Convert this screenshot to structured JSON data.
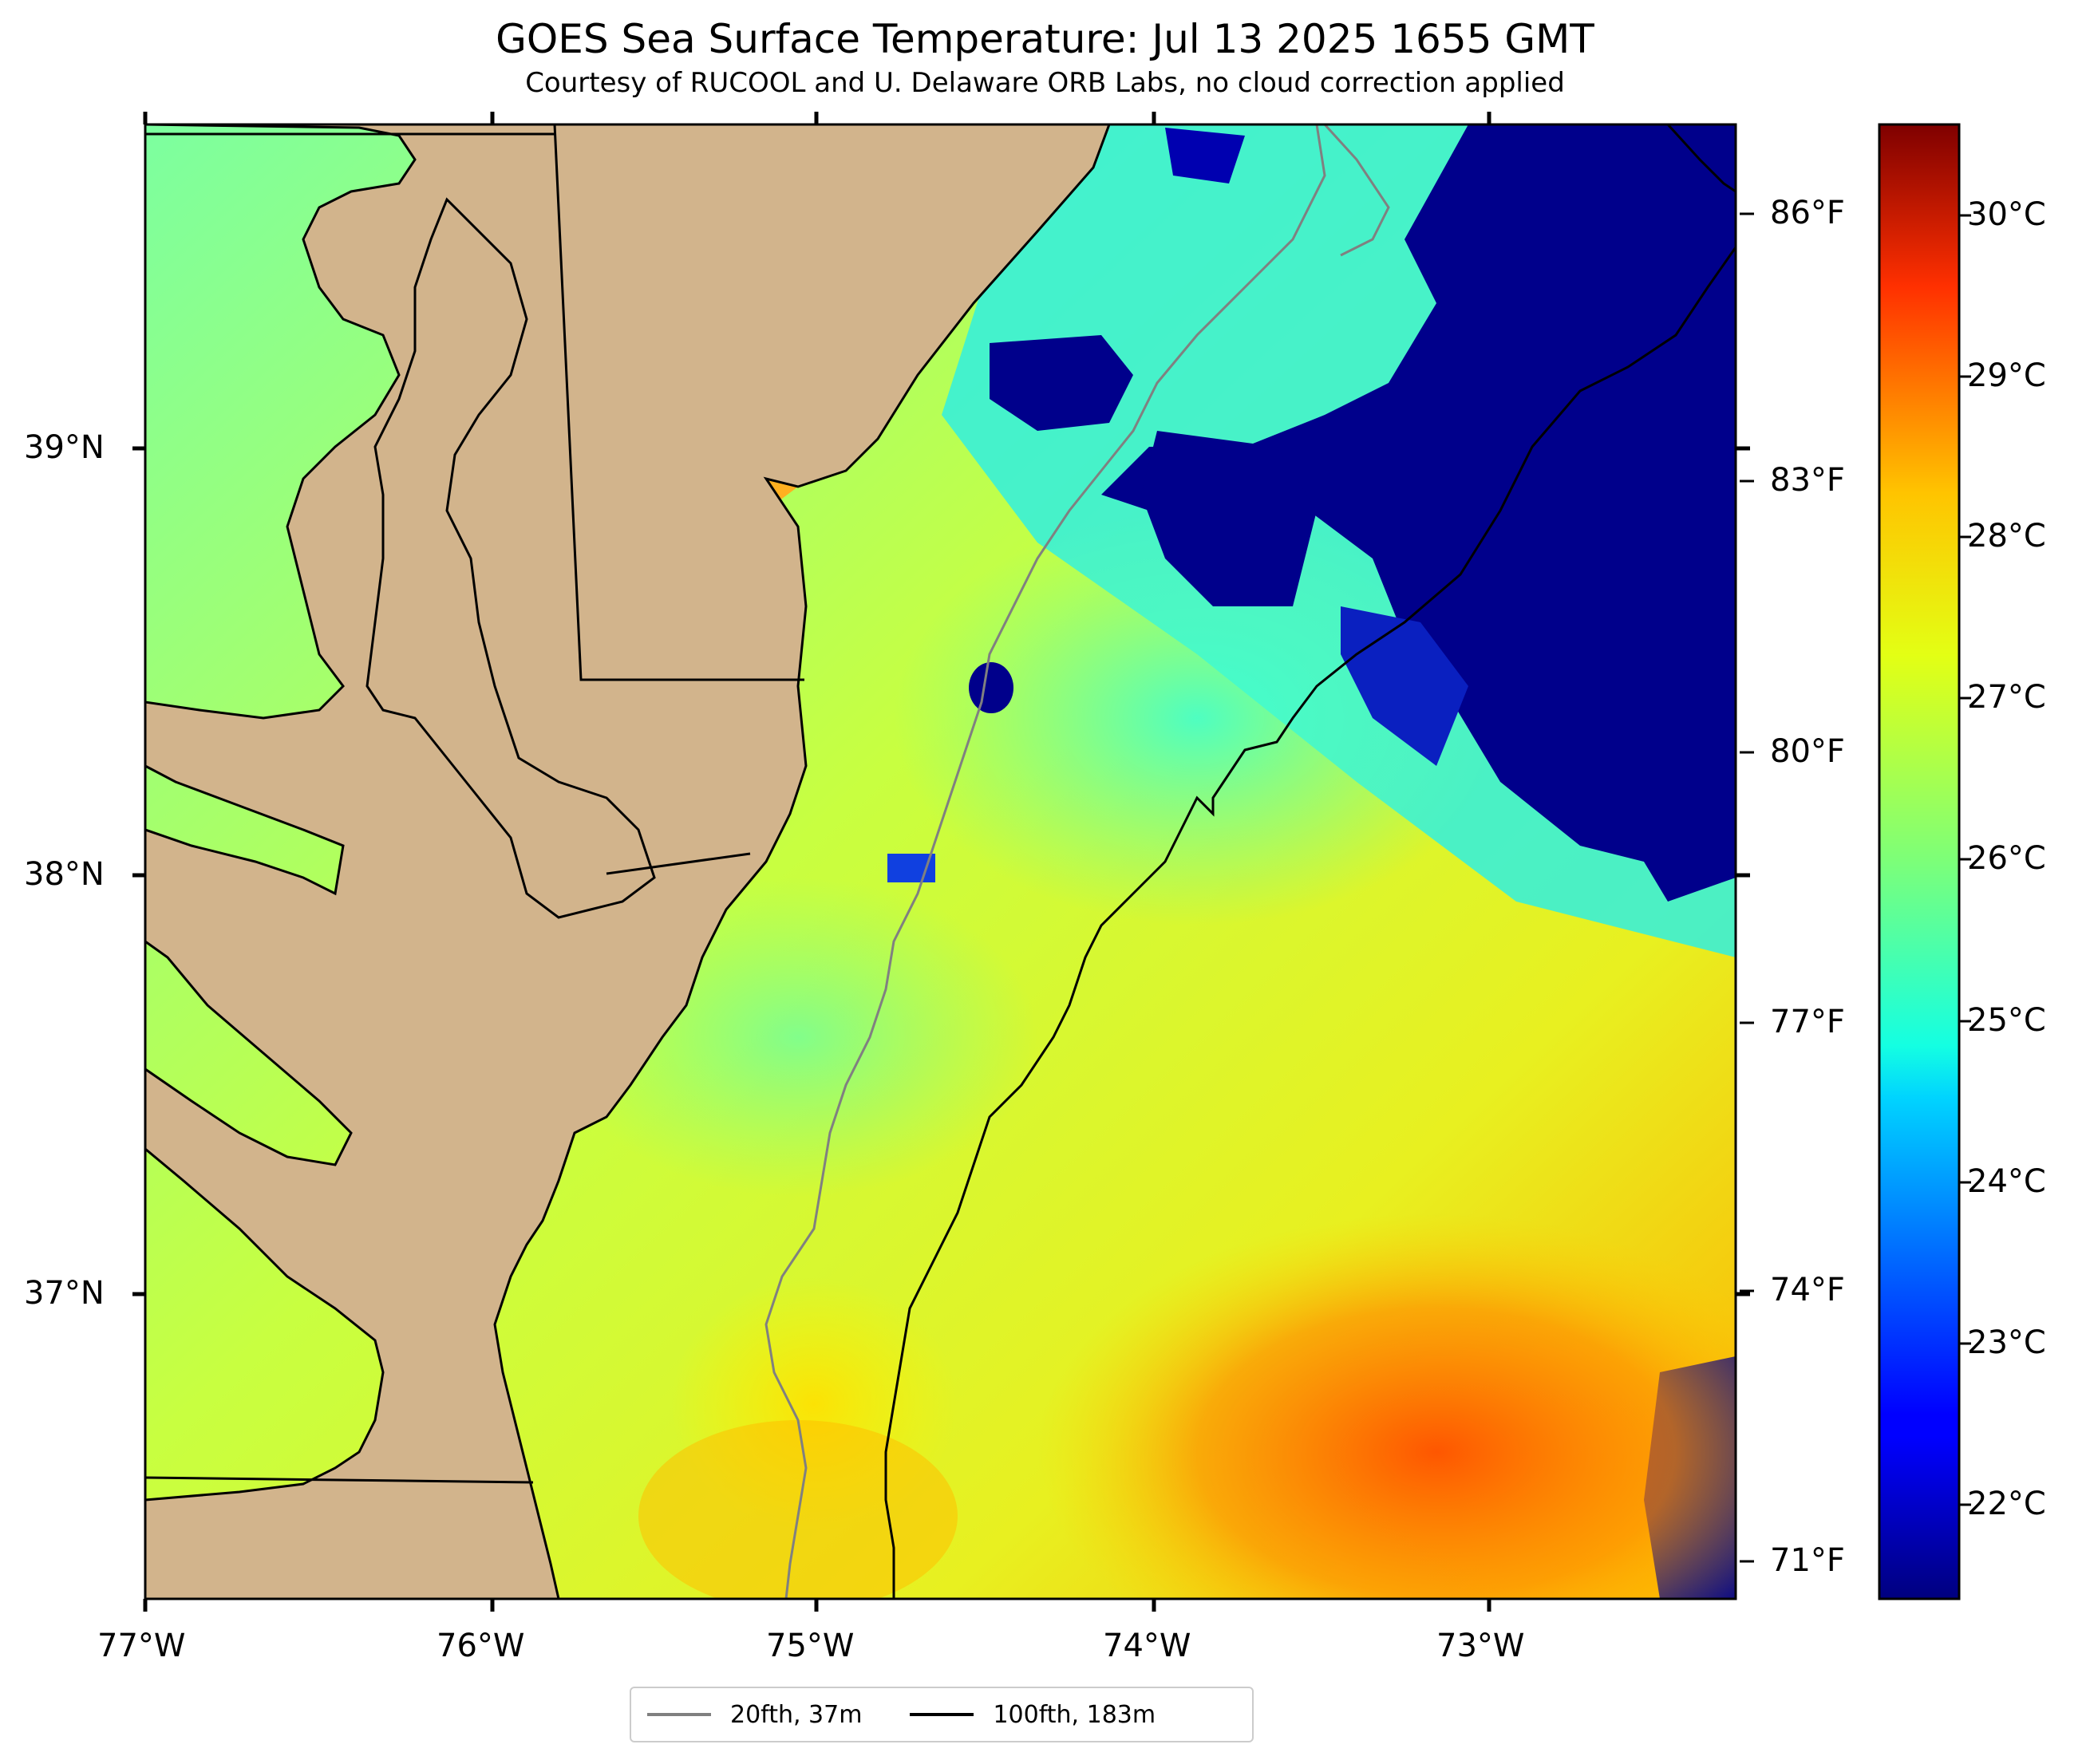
{
  "title": "GOES Sea Surface Temperature: Jul 13 2025 1655 GMT",
  "subtitle": "Courtesy of RUCOOL and U. Delaware ORB Labs, no cloud correction applied",
  "axes": {
    "latitude_labels": [
      "39°N",
      "38°N",
      "37°N"
    ],
    "longitude_labels": [
      "77°W",
      "76°W",
      "75°W",
      "74°W",
      "73°W"
    ]
  },
  "colorbar": {
    "fahrenheit_labels": [
      "86°F",
      "83°F",
      "80°F",
      "77°F",
      "74°F",
      "71°F"
    ],
    "celsius_labels": [
      "30°C",
      "29°C",
      "28°C",
      "27°C",
      "26°C",
      "25°C",
      "24°C",
      "23°C",
      "22°C"
    ],
    "colormap": "jet",
    "celsius_range": [
      21.5,
      30.5
    ]
  },
  "legend": {
    "items": [
      {
        "label": "20fth, 37m",
        "color": "#808080"
      },
      {
        "label": "100fth, 183m",
        "color": "#000000"
      }
    ]
  },
  "colors": {
    "land": "#D2B48C",
    "ocean_warm": "#FF4000",
    "ocean_cold": "#00008B"
  }
}
